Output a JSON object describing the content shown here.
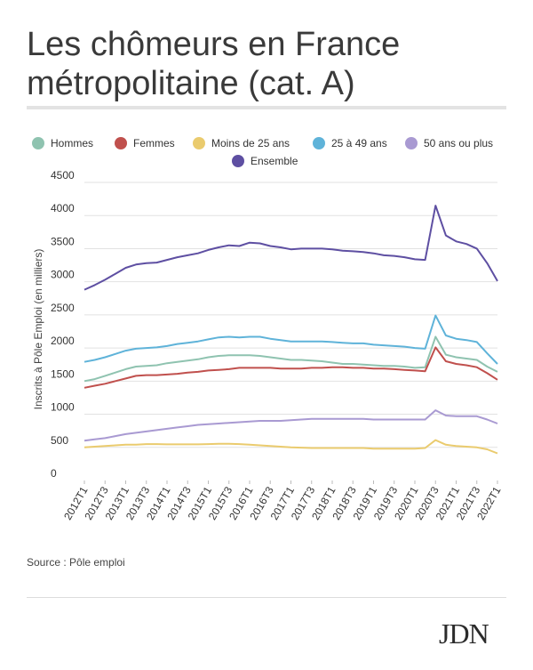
{
  "title": "Les chômeurs en France métropolitaine (cat. A)",
  "source": "Source : Pôle emploi",
  "logo_text": "JDN",
  "chart_data": {
    "type": "line",
    "ylabel": "Inscrits à Pôle Emploi (en milliers)",
    "xlabel": "",
    "ylim": [
      0,
      4500
    ],
    "yticks": [
      0,
      500,
      1000,
      1500,
      2000,
      2500,
      3000,
      3500,
      4000,
      4500
    ],
    "grid": true,
    "legend_position": "top",
    "x_tick_labels": [
      "2012T1",
      "2012T3",
      "2013T1",
      "2013T3",
      "2014T1",
      "2014T3",
      "2015T1",
      "2015T3",
      "2016T1",
      "2016T3",
      "2017T1",
      "2017T3",
      "2018T1",
      "2018T3",
      "2019T1",
      "2019T3",
      "2020T1",
      "2020T3",
      "2021T1",
      "2021T3",
      "2022T1"
    ],
    "categories": [
      "2012T1",
      "2012T2",
      "2012T3",
      "2012T4",
      "2013T1",
      "2013T2",
      "2013T3",
      "2013T4",
      "2014T1",
      "2014T2",
      "2014T3",
      "2014T4",
      "2015T1",
      "2015T2",
      "2015T3",
      "2015T4",
      "2016T1",
      "2016T2",
      "2016T3",
      "2016T4",
      "2017T1",
      "2017T2",
      "2017T3",
      "2017T4",
      "2018T1",
      "2018T2",
      "2018T3",
      "2018T4",
      "2019T1",
      "2019T2",
      "2019T3",
      "2019T4",
      "2020T1",
      "2020T2",
      "2020T3",
      "2020T4",
      "2021T1",
      "2021T2",
      "2021T3",
      "2021T4",
      "2022T1"
    ],
    "series": [
      {
        "name": "Hommes",
        "color": "#8fc3b0",
        "values": [
          1500,
          1530,
          1580,
          1630,
          1680,
          1720,
          1730,
          1740,
          1770,
          1790,
          1810,
          1830,
          1860,
          1880,
          1890,
          1890,
          1890,
          1880,
          1860,
          1840,
          1820,
          1820,
          1810,
          1800,
          1780,
          1760,
          1760,
          1750,
          1740,
          1730,
          1730,
          1720,
          1700,
          1710,
          2170,
          1900,
          1860,
          1840,
          1820,
          1720,
          1640
        ]
      },
      {
        "name": "Femmes",
        "color": "#c0504d",
        "values": [
          1400,
          1430,
          1460,
          1500,
          1540,
          1580,
          1590,
          1590,
          1600,
          1610,
          1630,
          1640,
          1660,
          1670,
          1680,
          1700,
          1700,
          1700,
          1700,
          1690,
          1690,
          1690,
          1700,
          1700,
          1710,
          1710,
          1700,
          1700,
          1690,
          1690,
          1680,
          1670,
          1660,
          1650,
          2010,
          1800,
          1760,
          1740,
          1710,
          1620,
          1520
        ]
      },
      {
        "name": "Moins de 25 ans",
        "color": "#eacb6e",
        "values": [
          500,
          510,
          520,
          530,
          540,
          540,
          550,
          550,
          545,
          545,
          545,
          545,
          550,
          555,
          555,
          550,
          540,
          530,
          520,
          510,
          500,
          495,
          490,
          490,
          490,
          490,
          490,
          490,
          480,
          480,
          480,
          480,
          480,
          490,
          610,
          540,
          520,
          510,
          500,
          470,
          410
        ]
      },
      {
        "name": "25 à 49 ans",
        "color": "#5fb3d9",
        "values": [
          1790,
          1820,
          1860,
          1910,
          1960,
          1990,
          2000,
          2010,
          2030,
          2060,
          2080,
          2100,
          2130,
          2160,
          2170,
          2160,
          2170,
          2170,
          2140,
          2120,
          2100,
          2100,
          2100,
          2100,
          2090,
          2080,
          2070,
          2070,
          2050,
          2040,
          2030,
          2020,
          2000,
          1990,
          2490,
          2190,
          2140,
          2120,
          2090,
          1920,
          1760
        ]
      },
      {
        "name": "50 ans ou plus",
        "color": "#a99ad2",
        "values": [
          600,
          620,
          640,
          670,
          700,
          720,
          740,
          760,
          780,
          800,
          820,
          840,
          850,
          860,
          870,
          880,
          890,
          900,
          900,
          900,
          910,
          920,
          930,
          930,
          930,
          930,
          930,
          930,
          920,
          920,
          920,
          920,
          920,
          920,
          1060,
          980,
          970,
          970,
          970,
          920,
          860
        ]
      },
      {
        "name": "Ensemble",
        "color": "#5e4fa2",
        "values": [
          2880,
          2950,
          3030,
          3120,
          3210,
          3260,
          3280,
          3290,
          3330,
          3370,
          3400,
          3430,
          3480,
          3520,
          3550,
          3540,
          3590,
          3580,
          3540,
          3520,
          3490,
          3500,
          3500,
          3500,
          3490,
          3470,
          3460,
          3450,
          3430,
          3400,
          3390,
          3370,
          3340,
          3330,
          4150,
          3700,
          3610,
          3570,
          3500,
          3280,
          3010
        ]
      }
    ]
  }
}
